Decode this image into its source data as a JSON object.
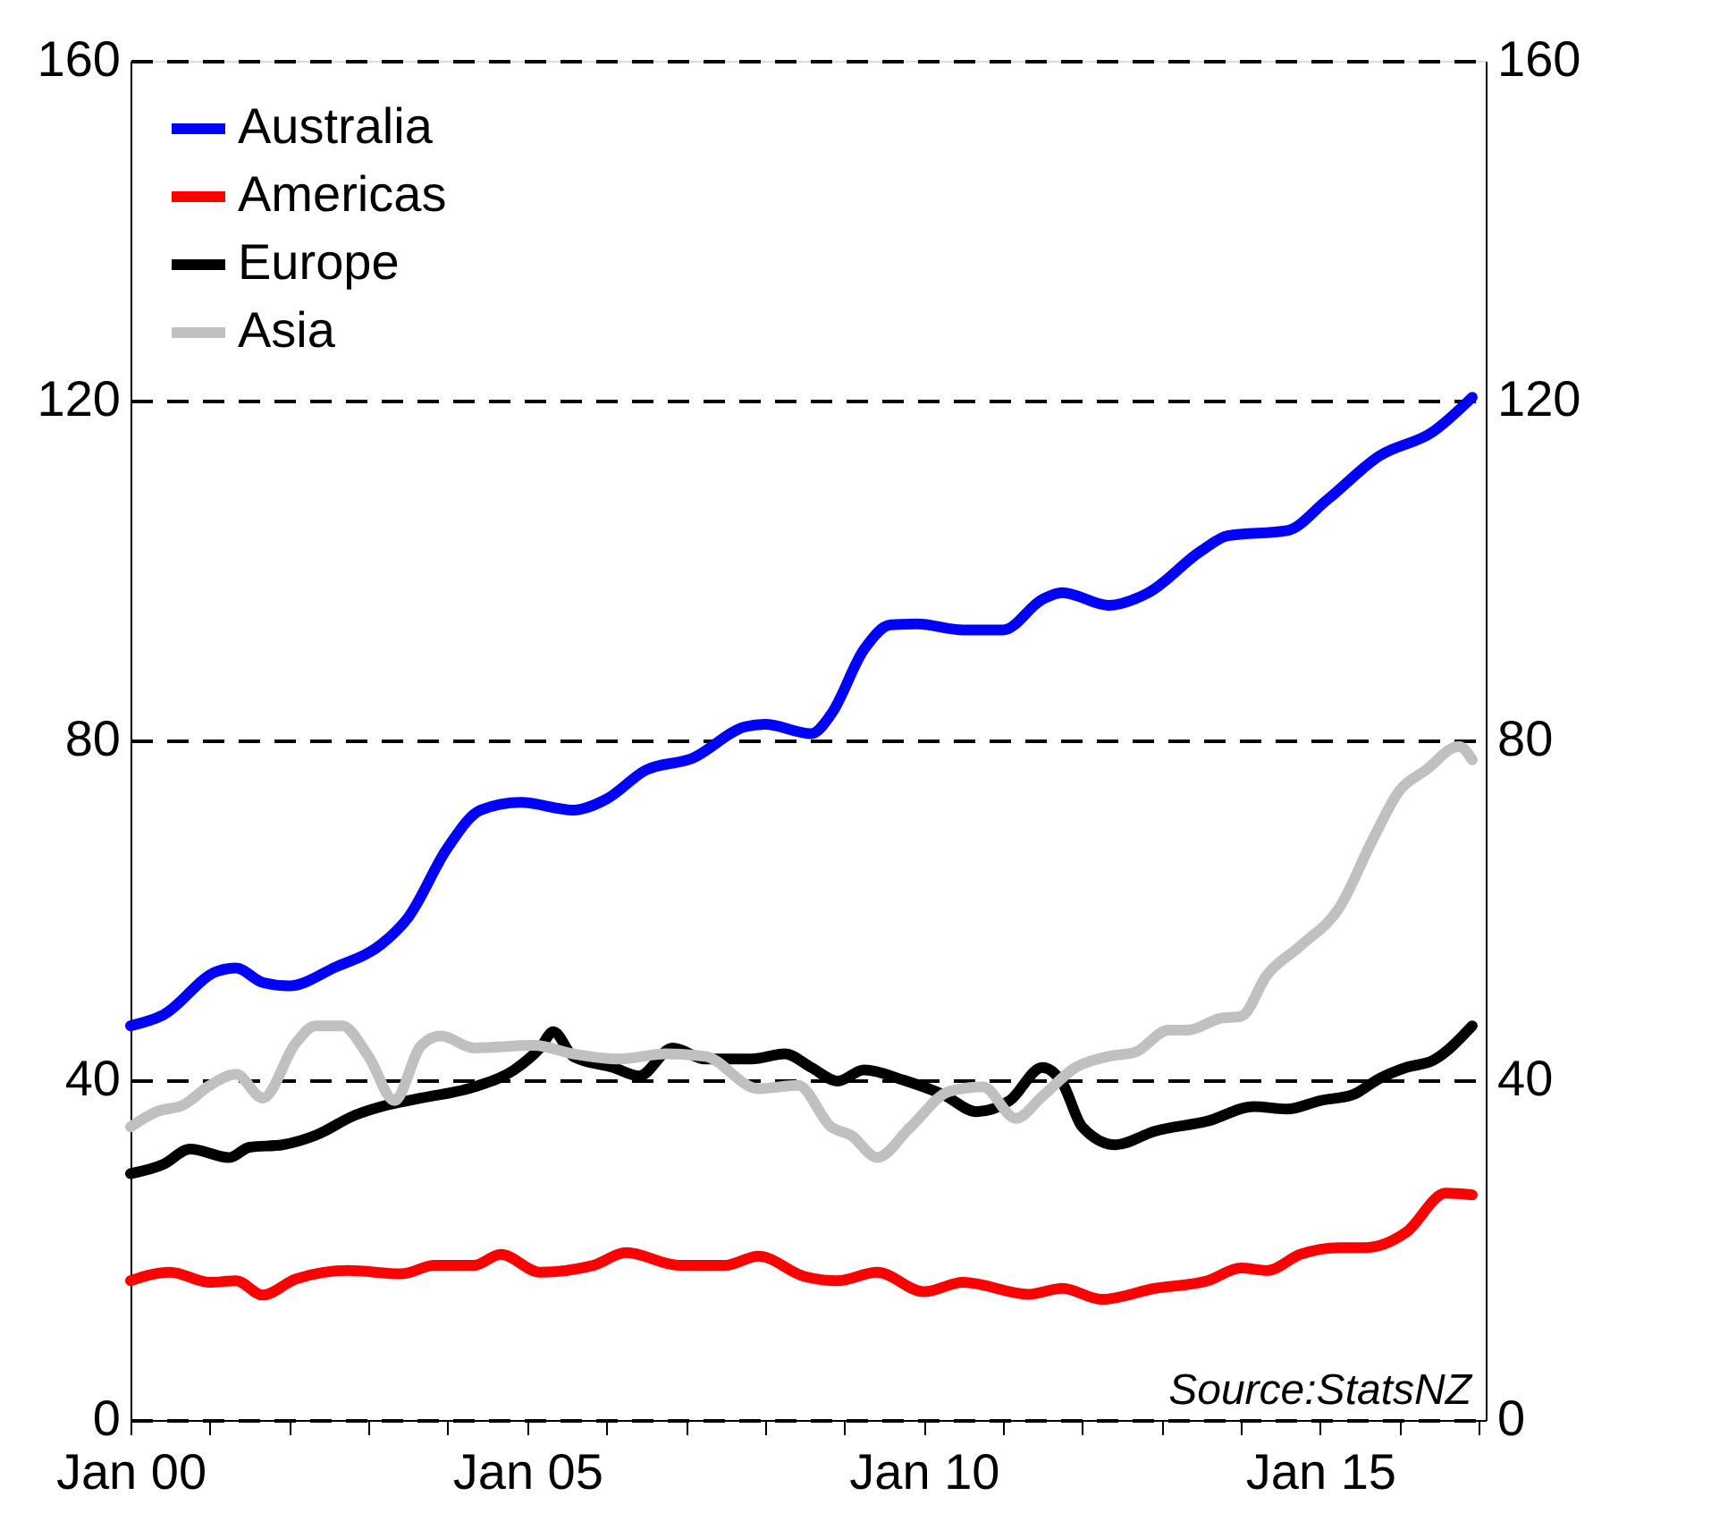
{
  "chart_data": {
    "type": "line",
    "series": [
      {
        "name": "Australia",
        "color": "#0000ff",
        "x": [
          "2000-01",
          "2000-06",
          "2001-02",
          "2001-05",
          "2001-09",
          "2002-01",
          "2002-08",
          "2003-03",
          "2003-07",
          "2004-01",
          "2004-06",
          "2004-12",
          "2005-08",
          "2006-01",
          "2006-07",
          "2007-02",
          "2007-10",
          "2008-01",
          "2008-08",
          "2008-11",
          "2009-04",
          "2009-08",
          "2009-12",
          "2010-07",
          "2011-01",
          "2011-07",
          "2011-10",
          "2012-05",
          "2012-11",
          "2013-07",
          "2013-11",
          "2014-08",
          "2015-02",
          "2015-10",
          "2016-06",
          "2016-12"
        ],
        "values": [
          46.4,
          47.7,
          52.8,
          53.2,
          51.5,
          51.1,
          53.3,
          56.0,
          59.1,
          67.4,
          71.8,
          72.7,
          71.8,
          73.1,
          76.5,
          77.9,
          81.6,
          81.9,
          80.8,
          83.1,
          90.7,
          93.6,
          93.7,
          93.0,
          93.0,
          96.6,
          97.4,
          95.9,
          97.4,
          102.3,
          104.1,
          104.7,
          108.3,
          113.5,
          116.3,
          120.4
        ]
      },
      {
        "name": "Americas",
        "color": "#ff0000",
        "x": [
          "2000-01",
          "2000-07",
          "2001-01",
          "2001-05",
          "2001-09",
          "2002-02",
          "2002-10",
          "2003-06",
          "2003-11",
          "2004-05",
          "2004-09",
          "2005-03",
          "2005-11",
          "2006-04",
          "2006-12",
          "2007-07",
          "2007-12",
          "2008-07",
          "2008-12",
          "2009-06",
          "2010-01",
          "2010-07",
          "2011-05",
          "2011-10",
          "2012-04",
          "2012-12",
          "2013-08",
          "2014-01",
          "2014-05",
          "2014-10",
          "2015-04",
          "2015-08",
          "2016-02",
          "2016-08",
          "2016-12"
        ],
        "values": [
          16.4,
          17.4,
          16.2,
          16.4,
          14.7,
          16.6,
          17.6,
          17.2,
          18.2,
          18.2,
          19.5,
          17.4,
          18.2,
          19.7,
          18.2,
          18.2,
          19.3,
          16.9,
          16.4,
          17.4,
          15.1,
          16.2,
          14.8,
          15.5,
          14.2,
          15.5,
          16.4,
          17.9,
          17.6,
          19.5,
          20.3,
          20.3,
          22.1,
          26.7,
          26.5
        ]
      },
      {
        "name": "Europe",
        "color": "#000000",
        "x": [
          "2000-01",
          "2000-06",
          "2000-10",
          "2001-04",
          "2001-07",
          "2001-12",
          "2002-05",
          "2002-11",
          "2003-03",
          "2003-09",
          "2004-05",
          "2004-11",
          "2005-03",
          "2005-05",
          "2005-08",
          "2006-02",
          "2006-06",
          "2006-11",
          "2007-04",
          "2007-11",
          "2008-04",
          "2008-08",
          "2008-12",
          "2009-04",
          "2009-10",
          "2010-04",
          "2010-09",
          "2011-02",
          "2011-07",
          "2011-10",
          "2012-01",
          "2012-06",
          "2012-12",
          "2013-08",
          "2014-03",
          "2014-08",
          "2015-01",
          "2015-06",
          "2015-10",
          "2016-02",
          "2016-06",
          "2016-12"
        ],
        "values": [
          29.0,
          30.1,
          31.9,
          30.9,
          32.1,
          32.4,
          33.5,
          35.9,
          36.9,
          37.9,
          39.2,
          41.2,
          43.8,
          45.7,
          42.8,
          41.5,
          40.5,
          43.8,
          42.5,
          42.5,
          43.1,
          41.5,
          39.9,
          41.2,
          40.0,
          38.3,
          36.3,
          37.6,
          41.5,
          39.7,
          34.5,
          32.4,
          34.0,
          35.2,
          36.9,
          36.6,
          37.6,
          38.3,
          40.2,
          41.5,
          42.3,
          46.4
        ]
      },
      {
        "name": "Asia",
        "color": "#c0c0c0",
        "x": [
          "2000-01",
          "2000-05",
          "2000-09",
          "2001-01",
          "2001-05",
          "2001-09",
          "2002-02",
          "2002-05",
          "2002-09",
          "2003-01",
          "2003-05",
          "2003-09",
          "2003-12",
          "2004-05",
          "2005-02",
          "2005-08",
          "2006-03",
          "2006-10",
          "2007-04",
          "2007-12",
          "2008-06",
          "2008-11",
          "2009-02",
          "2009-06",
          "2009-11",
          "2010-05",
          "2010-10",
          "2011-03",
          "2011-07",
          "2011-12",
          "2012-05",
          "2012-09",
          "2013-02",
          "2013-05",
          "2013-10",
          "2014-01",
          "2014-05",
          "2014-10",
          "2015-04",
          "2015-09",
          "2016-01",
          "2016-05",
          "2016-10",
          "2016-12"
        ],
        "values": [
          34.5,
          36.3,
          37.1,
          39.4,
          40.7,
          37.9,
          44.4,
          46.4,
          46.4,
          42.8,
          37.6,
          44.1,
          45.2,
          43.8,
          44.1,
          43.1,
          42.5,
          43.1,
          42.8,
          39.0,
          39.4,
          34.5,
          33.5,
          30.9,
          34.5,
          38.7,
          39.2,
          35.5,
          38.1,
          41.5,
          42.8,
          43.3,
          45.9,
          45.9,
          47.3,
          47.5,
          52.4,
          55.8,
          60.4,
          68.4,
          74.1,
          76.5,
          79.3,
          77.7
        ]
      }
    ],
    "xlim": [
      "2000-01",
      "2017-02"
    ],
    "xticks": [
      {
        "value": "2000-01",
        "label": "Jan 00"
      },
      {
        "value": "2001-01",
        "label": null
      },
      {
        "value": "2002-01",
        "label": null
      },
      {
        "value": "2003-01",
        "label": null
      },
      {
        "value": "2004-01",
        "label": null
      },
      {
        "value": "2005-01",
        "label": "Jan 05"
      },
      {
        "value": "2006-01",
        "label": null
      },
      {
        "value": "2007-01",
        "label": null
      },
      {
        "value": "2008-01",
        "label": null
      },
      {
        "value": "2009-01",
        "label": null
      },
      {
        "value": "2010-01",
        "label": "Jan 10"
      },
      {
        "value": "2011-01",
        "label": null
      },
      {
        "value": "2012-01",
        "label": null
      },
      {
        "value": "2013-01",
        "label": null
      },
      {
        "value": "2014-01",
        "label": null
      },
      {
        "value": "2015-01",
        "label": "Jan 15"
      },
      {
        "value": "2016-01",
        "label": null
      },
      {
        "value": "2017-01",
        "label": null
      }
    ],
    "ylim": [
      0,
      160
    ],
    "yticks": [
      0,
      40,
      80,
      120,
      160
    ],
    "y2lim": [
      0,
      160
    ],
    "y2ticks": [
      0,
      40,
      80,
      120,
      160
    ],
    "grid": "y",
    "legend": "top left",
    "line_style": "solid",
    "marker": "none",
    "annotations": [
      "Source:StatsNZ"
    ]
  }
}
